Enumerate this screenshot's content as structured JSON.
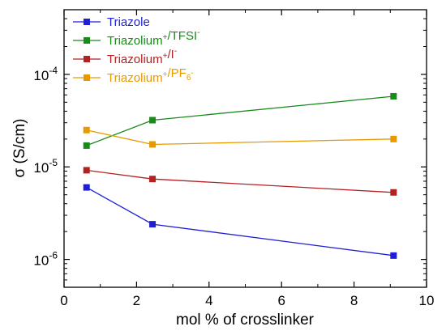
{
  "chart_data": {
    "type": "line",
    "xlabel": "mol % of crosslinker",
    "ylabel": "σ (S/cm)",
    "xlim": [
      0,
      10
    ],
    "ylim": [
      5e-07,
      0.0005
    ],
    "yscale": "log",
    "x_ticks": [
      "0",
      "2",
      "4",
      "6",
      "8",
      "10"
    ],
    "y_ticks": [
      {
        "base": "10",
        "exp": "-6",
        "value": 1e-06
      },
      {
        "base": "10",
        "exp": "-5",
        "value": 1e-05
      },
      {
        "base": "10",
        "exp": "-4",
        "value": 0.0001
      }
    ],
    "grid": false,
    "legend_position": "top-left",
    "series": [
      {
        "name": "Triazole",
        "color": "#1f1fd6",
        "x": [
          0.62,
          2.44,
          9.09
        ],
        "y": [
          6e-06,
          2.4e-06,
          1.1e-06
        ]
      },
      {
        "name": "Triazolium+/TFSI-",
        "color": "#1a8a1a",
        "x": [
          0.62,
          2.44,
          9.09
        ],
        "y": [
          1.7e-05,
          3.2e-05,
          5.8e-05
        ]
      },
      {
        "name": "Triazolium+/I-",
        "color": "#b22222",
        "x": [
          0.62,
          2.44,
          9.09
        ],
        "y": [
          9.2e-06,
          7.4e-06,
          5.3e-06
        ]
      },
      {
        "name": "Triazolium+/PF6-",
        "color": "#e69a00",
        "x": [
          0.62,
          2.44,
          9.09
        ],
        "y": [
          2.5e-05,
          1.75e-05,
          2e-05
        ]
      }
    ],
    "legend": [
      {
        "parts": [
          {
            "t": "Triazole",
            "s": "n"
          }
        ]
      },
      {
        "parts": [
          {
            "t": "Triazolium",
            "s": "n"
          },
          {
            "t": "+",
            "s": "sup"
          },
          {
            "t": "/TFSI",
            "s": "n"
          },
          {
            "t": "-",
            "s": "sup"
          }
        ]
      },
      {
        "parts": [
          {
            "t": "Triazolium",
            "s": "n"
          },
          {
            "t": "+",
            "s": "sup"
          },
          {
            "t": "/I",
            "s": "n"
          },
          {
            "t": "-",
            "s": "sup"
          }
        ]
      },
      {
        "parts": [
          {
            "t": "Triazolium",
            "s": "n"
          },
          {
            "t": "+",
            "s": "sup"
          },
          {
            "t": "/PF",
            "s": "n"
          },
          {
            "t": "6",
            "s": "sub"
          },
          {
            "t": "-",
            "s": "sup"
          }
        ]
      }
    ]
  }
}
